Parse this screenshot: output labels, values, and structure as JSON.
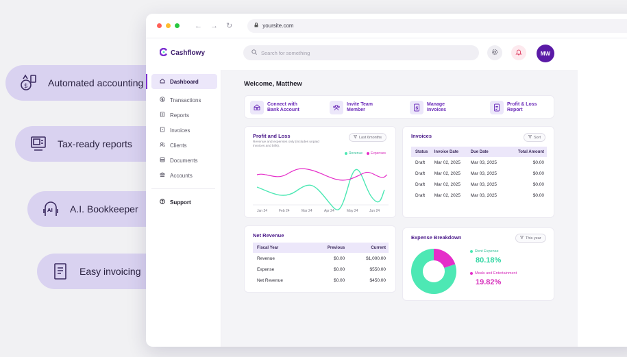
{
  "features": [
    {
      "label": "Automated accounting",
      "icon": "money-gear-icon"
    },
    {
      "label": "Tax-ready reports",
      "icon": "tax-report-icon"
    },
    {
      "label": "A.I. Bookkeeper",
      "icon": "ai-head-icon"
    },
    {
      "label": "Easy invoicing",
      "icon": "invoice-icon"
    }
  ],
  "browser": {
    "url": "yoursite.com"
  },
  "app": {
    "logo": "Cashflowy",
    "search_placeholder": "Search for something",
    "avatar_initials": "MW",
    "accent": "#7b2fd0",
    "sidebar": [
      {
        "label": "Dashboard",
        "icon": "home-icon"
      },
      {
        "label": "Transactions",
        "icon": "dollar-circle-icon"
      },
      {
        "label": "Reports",
        "icon": "report-icon"
      },
      {
        "label": "Invoices",
        "icon": "invoice-icon"
      },
      {
        "label": "Clients",
        "icon": "users-icon"
      },
      {
        "label": "Documents",
        "icon": "document-icon"
      },
      {
        "label": "Accounts",
        "icon": "accounts-icon"
      }
    ],
    "support": "Support",
    "welcome": "Welcome, Matthew",
    "quick_actions": [
      {
        "label": "Connect with Bank Account",
        "icon": "bank-icon"
      },
      {
        "label": "Invite Team Member",
        "icon": "team-icon"
      },
      {
        "label": "Manage Invoices",
        "icon": "dollar-doc-icon"
      },
      {
        "label": "Profit & Loss Report",
        "icon": "report-doc-icon"
      }
    ],
    "pnl": {
      "title": "Profit and Loss",
      "subtitle": "Revenue and expenses only (includes unpaid invoices and bills).",
      "filter": "Last 6months",
      "legend_revenue": "Revenue",
      "legend_expenses": "Expenses",
      "months": [
        "Jan 24",
        "Feb 24",
        "Mar 24",
        "Apr 24",
        "May 24",
        "Jun 24"
      ]
    },
    "invoices": {
      "title": "Invoices",
      "sort": "Sort",
      "headers": [
        "Status",
        "Invoice Date",
        "Due Date",
        "Total Amount"
      ],
      "rows": [
        [
          "Draft",
          "Mar 02, 2025",
          "Mar 03, 2025",
          "$0.00"
        ],
        [
          "Draft",
          "Mar 02, 2025",
          "Mar 03, 2025",
          "$0.00"
        ],
        [
          "Draft",
          "Mar 02, 2025",
          "Mar 03, 2025",
          "$0.00"
        ],
        [
          "Draft",
          "Mar 02, 2025",
          "Mar 03, 2025",
          "$0.00"
        ]
      ]
    },
    "net_revenue": {
      "title": "Net Revenue",
      "headers": [
        "Fiscal Year",
        "Previous",
        "Current"
      ],
      "rows": [
        [
          "Revenue",
          "$0.00",
          "$1,000.00"
        ],
        [
          "Expense",
          "$0.00",
          "$550.00"
        ],
        [
          "Net Revenue",
          "$0.00",
          "$450.00"
        ]
      ]
    },
    "expense": {
      "title": "Expense Breakdown",
      "filter": "This year",
      "items": [
        {
          "label": "Rent Expense",
          "pct": "80.18%",
          "value": 80.18,
          "color": "#4de8b4"
        },
        {
          "label": "Meals and Entertainment",
          "pct": "19.82%",
          "value": 19.82,
          "color": "#e52ec9"
        }
      ]
    }
  }
}
